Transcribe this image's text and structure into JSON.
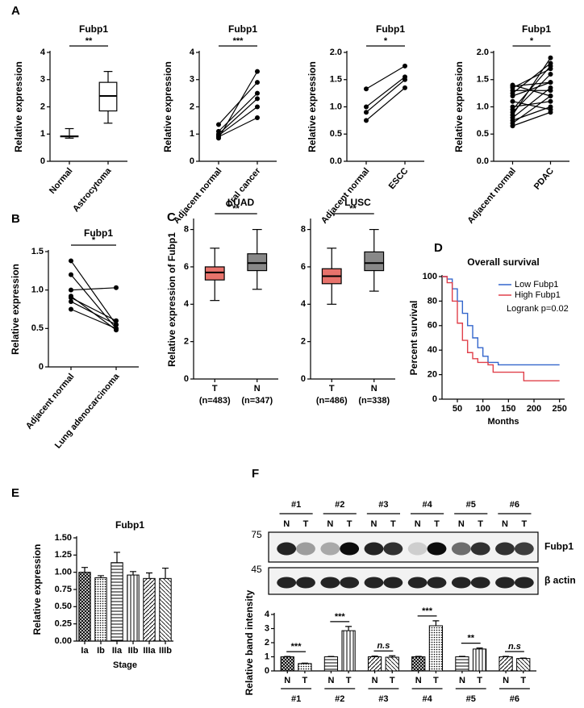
{
  "panels": [
    "A",
    "B",
    "C",
    "D",
    "E",
    "F"
  ],
  "chart_data": [
    {
      "type": "box",
      "title": "Fubp1",
      "ylabel": "Relative expression",
      "categories": [
        "Normal",
        "Astrocytoma"
      ],
      "boxes": [
        {
          "min": 0.85,
          "q1": 0.9,
          "median": 0.92,
          "q3": 0.93,
          "max": 1.2
        },
        {
          "min": 1.4,
          "q1": 1.85,
          "median": 2.4,
          "q3": 2.9,
          "max": 3.3
        }
      ],
      "colors": [
        "#ffffff",
        "#ffffff"
      ],
      "ylim": [
        0,
        4
      ],
      "yticks": [
        0,
        1,
        2,
        3,
        4
      ],
      "significance": "**"
    },
    {
      "type": "paired",
      "title": "Fubp1",
      "ylabel": "Relative expression",
      "categories": [
        "Adjacent normal",
        "Oral cancer"
      ],
      "pairs": [
        [
          0.85,
          3.3
        ],
        [
          0.9,
          1.6
        ],
        [
          0.95,
          2.0
        ],
        [
          1.0,
          2.3
        ],
        [
          1.1,
          2.5
        ],
        [
          1.35,
          2.9
        ]
      ],
      "ylim": [
        0,
        4
      ],
      "yticks": [
        0,
        1,
        2,
        3,
        4
      ],
      "significance": "***"
    },
    {
      "type": "paired",
      "title": "Fubp1",
      "ylabel": "Relative expression",
      "categories": [
        "Adjacent normal",
        "ESCC"
      ],
      "pairs": [
        [
          0.75,
          1.35
        ],
        [
          0.9,
          1.5
        ],
        [
          1.0,
          1.55
        ],
        [
          1.33,
          1.75
        ]
      ],
      "ylim": [
        0,
        2
      ],
      "yticks": [
        {
          "value": 0,
          "label": "0.0"
        },
        0.5,
        {
          "value": 1,
          "label": "1.0"
        },
        1.5,
        {
          "value": 2,
          "label": "2.0"
        }
      ],
      "significance": "*"
    },
    {
      "type": "paired",
      "title": "Fubp1",
      "ylabel": "Relative expression",
      "categories": [
        "Adjacent normal",
        "PDAC"
      ],
      "pairs": [
        [
          0.65,
          0.9
        ],
        [
          0.7,
          1.2
        ],
        [
          0.75,
          1.0
        ],
        [
          0.8,
          1.35
        ],
        [
          0.85,
          1.9
        ],
        [
          0.9,
          1.6
        ],
        [
          0.95,
          1.75
        ],
        [
          1.0,
          1.1
        ],
        [
          1.1,
          0.95
        ],
        [
          1.2,
          1.45
        ],
        [
          1.25,
          1.8
        ],
        [
          1.3,
          1.3
        ],
        [
          1.35,
          1.7
        ],
        [
          1.38,
          1.45
        ],
        [
          1.4,
          1.2
        ]
      ],
      "ylim": [
        0,
        2
      ],
      "yticks": [
        {
          "value": 0,
          "label": "0.0"
        },
        0.5,
        {
          "value": 1,
          "label": "1.0"
        },
        1.5,
        {
          "value": 2,
          "label": "2.0"
        }
      ],
      "significance": "*"
    },
    {
      "type": "paired",
      "title": "Fubp1",
      "ylabel": "Relative expression",
      "categories": [
        "Adjacent normal",
        "Lung adenocarcinoma"
      ],
      "pairs": [
        [
          1.38,
          0.55
        ],
        [
          1.2,
          0.5
        ],
        [
          1.0,
          1.03
        ],
        [
          0.9,
          0.6
        ],
        [
          0.92,
          0.48
        ],
        [
          0.85,
          0.55
        ],
        [
          0.75,
          0.5
        ]
      ],
      "ylim": [
        0,
        1.5
      ],
      "yticks": [
        0,
        0.5,
        {
          "value": 1,
          "label": "1.0"
        },
        1.5
      ],
      "significance": "*"
    },
    {
      "type": "box",
      "title": "LUAD",
      "ylabel": "Relative expression of Fubp1",
      "categories": [
        "T",
        "N"
      ],
      "category_notes": [
        "(n=483)",
        "(n=347)"
      ],
      "boxes": [
        {
          "min": 4.2,
          "q1": 5.3,
          "median": 5.7,
          "q3": 6.0,
          "max": 7.0
        },
        {
          "min": 4.8,
          "q1": 5.8,
          "median": 6.2,
          "q3": 6.7,
          "max": 8.0
        }
      ],
      "colors": [
        "#e8736c",
        "#888888"
      ],
      "ylim": [
        0,
        8.5
      ],
      "yticks": [
        0,
        2,
        4,
        6,
        8
      ],
      "significance": "**"
    },
    {
      "type": "box",
      "title": "LUSC",
      "categories": [
        "T",
        "N"
      ],
      "category_notes": [
        "(n=486)",
        "(n=338)"
      ],
      "boxes": [
        {
          "min": 4.0,
          "q1": 5.1,
          "median": 5.5,
          "q3": 5.9,
          "max": 7.0
        },
        {
          "min": 4.7,
          "q1": 5.8,
          "median": 6.2,
          "q3": 6.8,
          "max": 8.0
        }
      ],
      "colors": [
        "#e8736c",
        "#888888"
      ],
      "ylim": [
        0,
        8.5
      ],
      "yticks": [
        0,
        2,
        4,
        6,
        8
      ],
      "significance": "**"
    },
    {
      "type": "km",
      "title": "Overall survival",
      "xlabel": "Months",
      "ylabel": "Percent survival",
      "series": [
        {
          "name": "Low Fubp1",
          "color": "#3366cc",
          "x": [
            20,
            30,
            40,
            50,
            60,
            70,
            80,
            90,
            100,
            110,
            130,
            150,
            200,
            250
          ],
          "values": [
            100,
            98,
            90,
            80,
            70,
            60,
            50,
            42,
            35,
            30,
            28,
            28,
            28,
            28
          ]
        },
        {
          "name": "High Fubp1",
          "color": "#e0404a",
          "x": [
            20,
            30,
            40,
            50,
            60,
            70,
            80,
            90,
            110,
            120,
            180,
            250
          ],
          "values": [
            100,
            95,
            80,
            62,
            48,
            38,
            33,
            30,
            28,
            22,
            15,
            15
          ]
        }
      ],
      "annotation": "Logrank p=0.02",
      "legend": "upper right",
      "xlim": [
        20,
        260
      ],
      "xticks": [
        50,
        100,
        150,
        200,
        250
      ],
      "ylim": [
        0,
        100
      ],
      "yticks": [
        0,
        20,
        40,
        60,
        80,
        100
      ]
    },
    {
      "type": "bar",
      "title": "Fubp1",
      "xlabel": "Stage",
      "ylabel": "Relative expression",
      "categories": [
        "Ia",
        "Ib",
        "IIa",
        "IIb",
        "IIIa",
        "IIIb"
      ],
      "values": [
        1.0,
        0.92,
        1.14,
        0.96,
        0.91,
        0.91
      ],
      "errors": [
        0.07,
        0.03,
        0.15,
        0.05,
        0.08,
        0.15
      ],
      "ylim": [
        0,
        1.5
      ],
      "yticks": [
        {
          "value": 0,
          "label": "0.00"
        },
        {
          "value": 0.25,
          "label": "0.25"
        },
        {
          "value": 0.5,
          "label": "0.50"
        },
        {
          "value": 0.75,
          "label": "0.75"
        },
        {
          "value": 1,
          "label": "1.00"
        },
        {
          "value": 1.25,
          "label": "1.25"
        },
        {
          "value": 1.5,
          "label": "1.50"
        }
      ]
    },
    {
      "type": "grouped-bar",
      "ylabel": "Relative band intensity",
      "categories": [
        "#1",
        "#2",
        "#3",
        "#4",
        "#5",
        "#6"
      ],
      "series": [
        {
          "name": "N",
          "values": [
            1.0,
            1.0,
            1.0,
            1.0,
            1.0,
            1.0
          ],
          "errors": [
            0.02,
            0.02,
            0.05,
            0.03,
            0.03,
            0.03
          ]
        },
        {
          "name": "T",
          "values": [
            0.52,
            2.85,
            0.97,
            3.2,
            1.55,
            0.88
          ],
          "errors": [
            0.03,
            0.3,
            0.1,
            0.35,
            0.07,
            0.03
          ]
        }
      ],
      "significance": [
        "***",
        "***",
        "n.s",
        "***",
        "**",
        "n.s"
      ],
      "ylim": [
        0,
        4
      ],
      "yticks": [
        0,
        1,
        2,
        3,
        4
      ]
    }
  ],
  "blot": {
    "groups": [
      "#1",
      "#2",
      "#3",
      "#4",
      "#5",
      "#6"
    ],
    "lanes": [
      "N",
      "T"
    ],
    "markers": [
      "75",
      "45"
    ],
    "proteins": [
      "Fubp1",
      "β actin"
    ]
  }
}
